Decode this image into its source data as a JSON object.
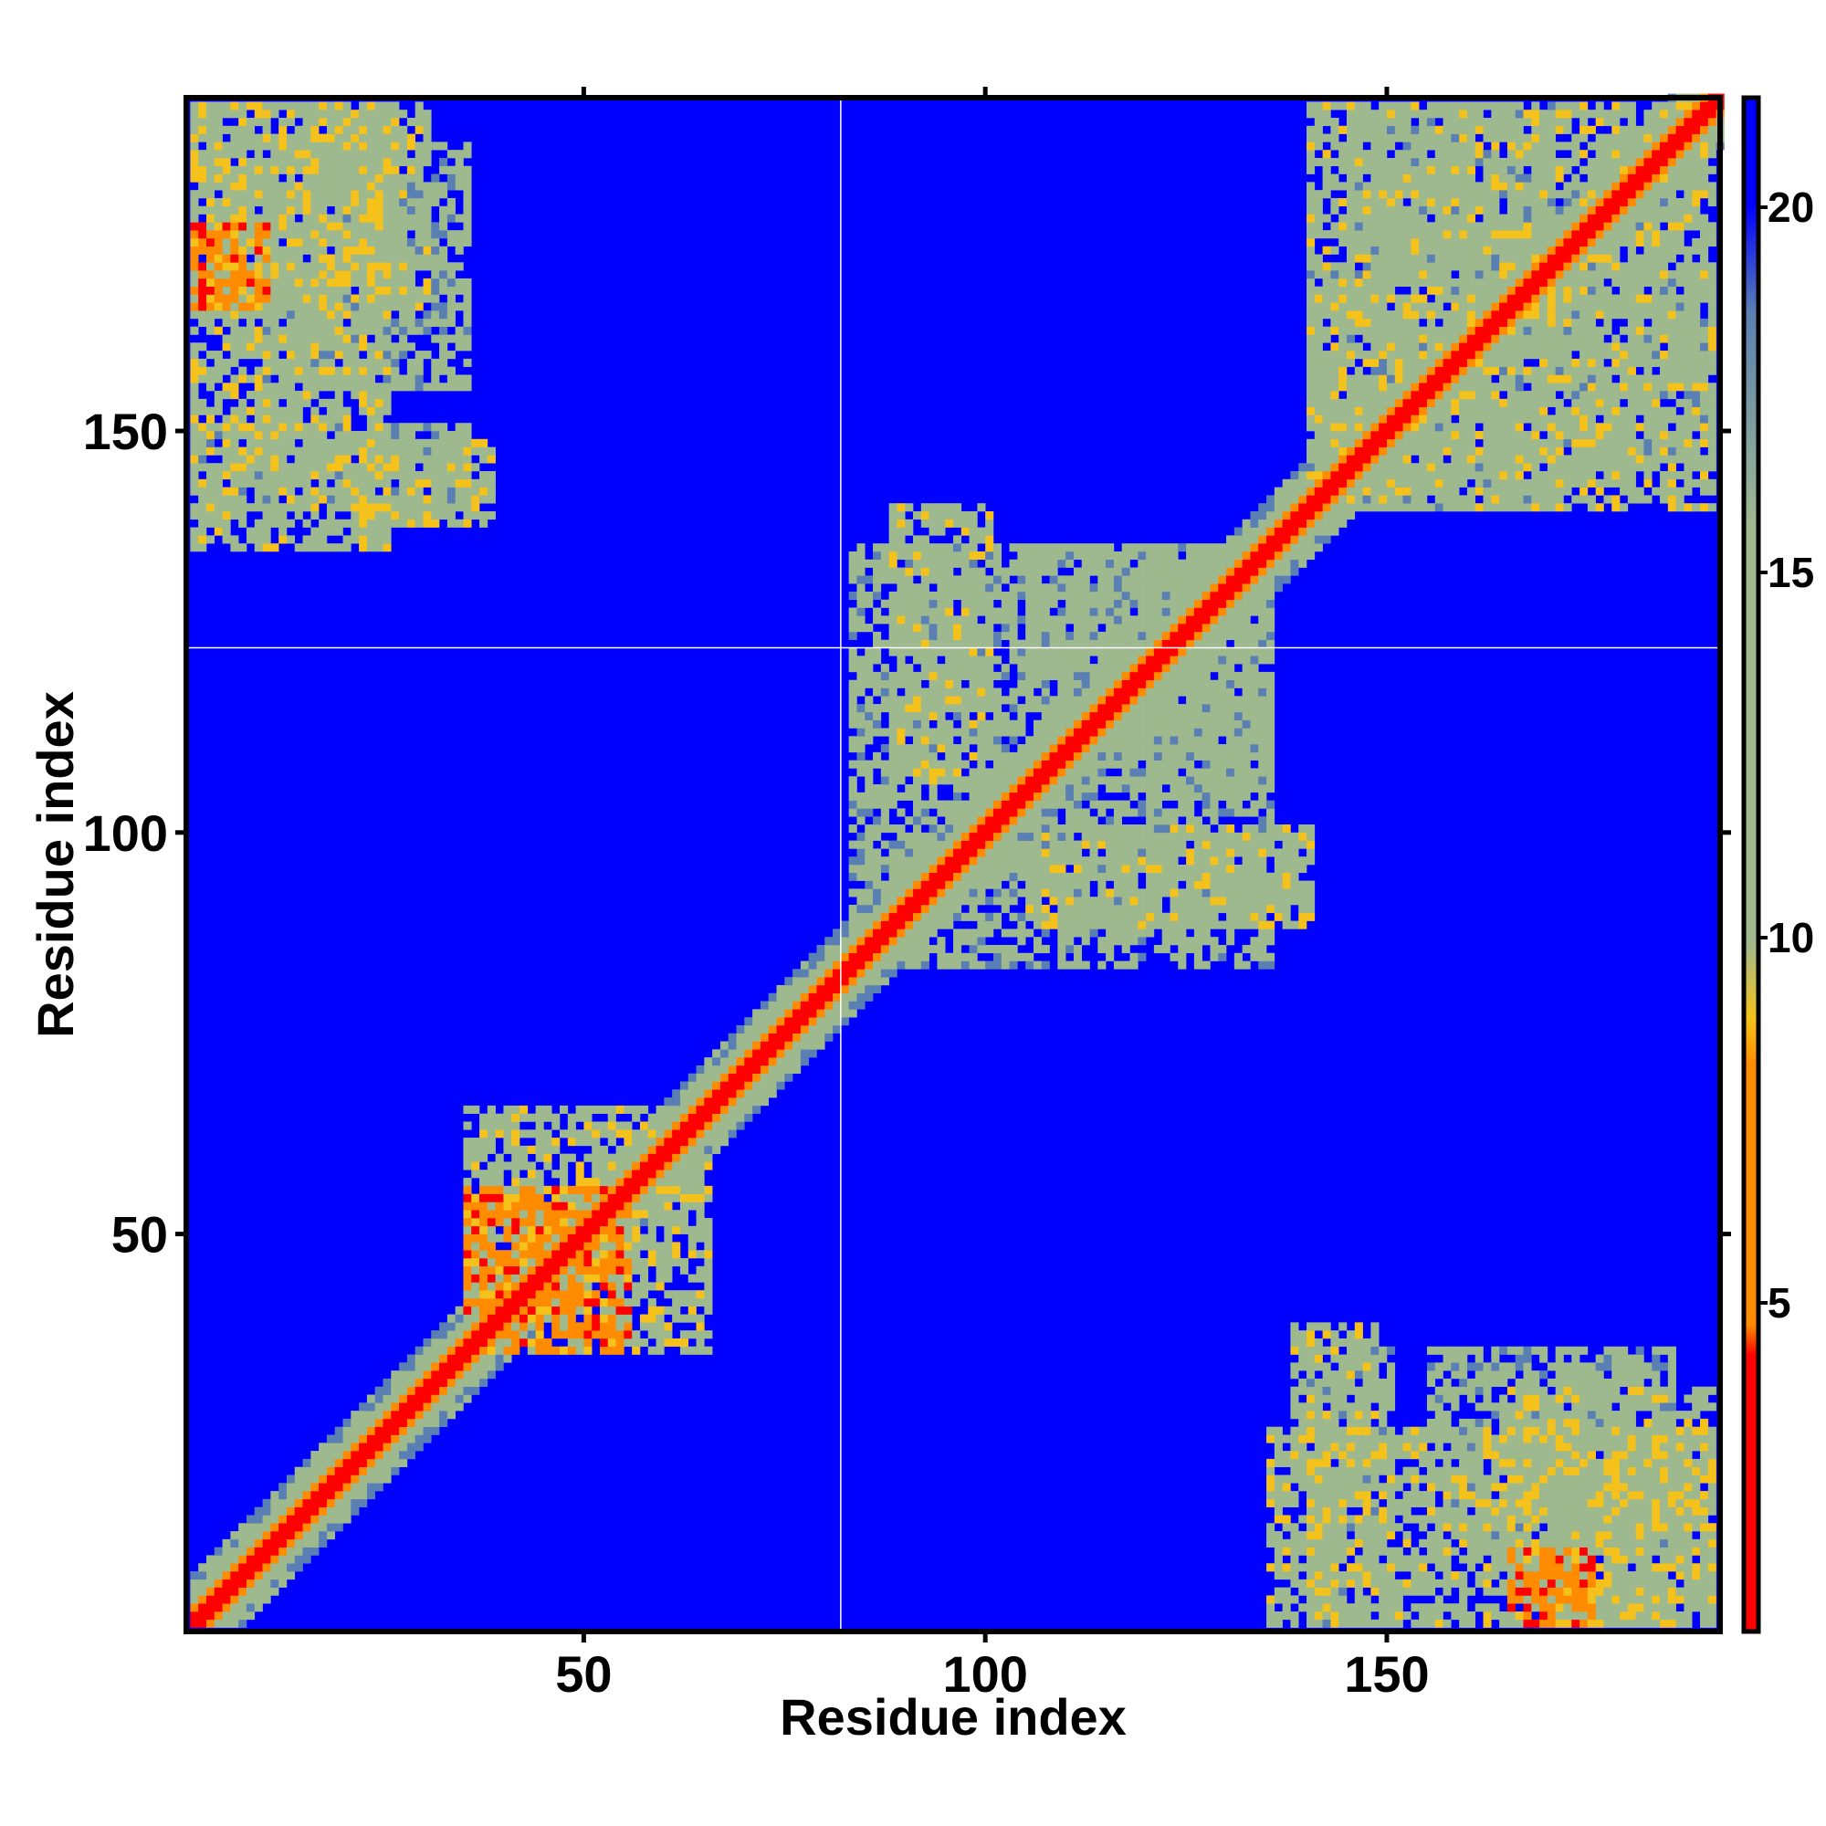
{
  "chart_data": {
    "type": "heatmap",
    "title": "",
    "xlabel": "Residue index",
    "ylabel": "Residue index",
    "xlim": [
      1,
      191
    ],
    "ylim": [
      1,
      191
    ],
    "x_ticks": [
      50,
      100,
      150
    ],
    "y_ticks": [
      50,
      100,
      150
    ],
    "colorbar": {
      "ticks": [
        5,
        10,
        15,
        20
      ],
      "range": [
        0.5,
        21.5
      ],
      "colors": [
        "#ff0000",
        "#ff8c00",
        "#f5c21b",
        "#9fb98f",
        "#5a7fb2",
        "#0000ff"
      ]
    },
    "gridlines": {
      "x": 82,
      "y": 123,
      "color": "#ffffff"
    },
    "background_value": 21,
    "description_of_structure": {
      "diagonal_band": "values near 1-4 along the main diagonal, widening to 8-14 within a few residues",
      "contact_blocks": [
        {
          "x": [
            1,
            25
          ],
          "y": [
            135,
            190
          ],
          "level": 11
        },
        {
          "x": [
            10,
            35
          ],
          "y": [
            155,
            185
          ],
          "level": 12
        },
        {
          "x": [
            20,
            38
          ],
          "y": [
            138,
            148
          ],
          "level": 11
        },
        {
          "x": [
            35,
            60
          ],
          "y": [
            35,
            65
          ],
          "level": 11
        },
        {
          "x": [
            40,
            55
          ],
          "y": [
            35,
            55
          ],
          "level": 6
        },
        {
          "x": [
            83,
            130
          ],
          "y": [
            83,
            135
          ],
          "level": 12
        },
        {
          "x": [
            105,
            140
          ],
          "y": [
            88,
            100
          ],
          "level": 11
        },
        {
          "x": [
            115,
            135
          ],
          "y": [
            105,
            135
          ],
          "level": 12
        },
        {
          "x": [
            140,
            190
          ],
          "y": [
            140,
            190
          ],
          "level": 11
        },
        {
          "x": [
            145,
            170
          ],
          "y": [
            140,
            190
          ],
          "level": 12
        },
        {
          "x": [
            165,
            190
          ],
          "y": [
            1,
            30
          ],
          "level": 11
        },
        {
          "x": [
            140,
            150
          ],
          "y": [
            1,
            35
          ],
          "level": 12
        },
        {
          "x": [
            165,
            175
          ],
          "y": [
            1,
            10
          ],
          "level": 6
        }
      ]
    }
  }
}
